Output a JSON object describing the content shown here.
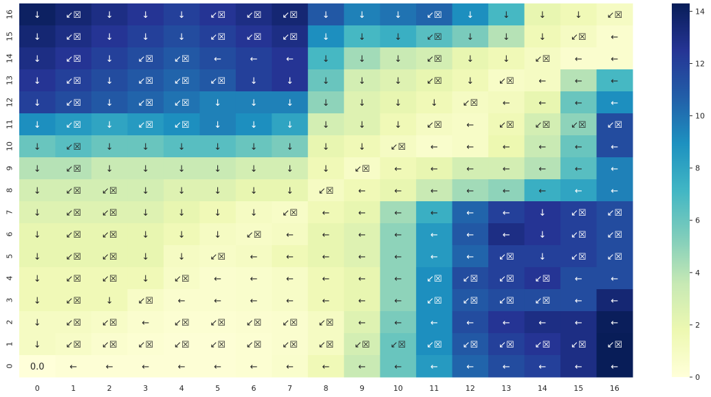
{
  "chart_data": {
    "type": "heatmap",
    "title": "",
    "xlabel": "",
    "ylabel": "",
    "x_ticks": [
      "0",
      "1",
      "2",
      "3",
      "4",
      "5",
      "6",
      "7",
      "8",
      "9",
      "10",
      "11",
      "12",
      "13",
      "14",
      "15",
      "16"
    ],
    "y_ticks": [
      "16",
      "15",
      "14",
      "13",
      "12",
      "11",
      "10",
      "9",
      "8",
      "7",
      "6",
      "5",
      "4",
      "3",
      "2",
      "1",
      "0"
    ],
    "colorbar": {
      "range": [
        0,
        14.3
      ],
      "ticks": [
        "0",
        "2",
        "4",
        "6",
        "8",
        "10",
        "12",
        "14"
      ],
      "tick_values": [
        0,
        2,
        4,
        6,
        8,
        10,
        12,
        14
      ],
      "colormap": "YlGnBu"
    },
    "annotations": [
      [
        "↓",
        "↙☒",
        "↓",
        "↓",
        "↓",
        "↙☒",
        "↙☒",
        "↙☒",
        "↓",
        "↓",
        "↓",
        "↙☒",
        "↓",
        "↓",
        "↓",
        "↓",
        "↙☒"
      ],
      [
        "↓",
        "↙☒",
        "↓",
        "↓",
        "↓",
        "↙☒",
        "↙☒",
        "↙☒",
        "↓",
        "↓",
        "↓",
        "↙☒",
        "↓",
        "↓",
        "↓",
        "↙☒",
        "←"
      ],
      [
        "↓",
        "↙☒",
        "↓",
        "↙☒",
        "↙☒",
        "←",
        "←",
        "←",
        "↓",
        "↓",
        "↓",
        "↙☒",
        "↓",
        "↓",
        "↙☒",
        "←",
        "←"
      ],
      [
        "↓",
        "↙☒",
        "↓",
        "↙☒",
        "↙☒",
        "↙☒",
        "↓",
        "↓",
        "↓",
        "↓",
        "↓",
        "↙☒",
        "↓",
        "↙☒",
        "←",
        "←",
        "←"
      ],
      [
        "↓",
        "↙☒",
        "↓",
        "↙☒",
        "↙☒",
        "↓",
        "↓",
        "↓",
        "↓",
        "↓",
        "↓",
        "↓",
        "↙☒",
        "←",
        "←",
        "←",
        "←"
      ],
      [
        "↓",
        "↙☒",
        "↓",
        "↙☒",
        "↙☒",
        "↓",
        "↓",
        "↓",
        "↓",
        "↓",
        "↓",
        "↙☒",
        "←",
        "↙☒",
        "↙☒",
        "↙☒",
        "↙☒"
      ],
      [
        "↓",
        "↙☒",
        "↓",
        "↓",
        "↓",
        "↓",
        "↓",
        "↓",
        "↓",
        "↓",
        "↙☒",
        "←",
        "←",
        "←",
        "←",
        "←",
        "←"
      ],
      [
        "↓",
        "↙☒",
        "↓",
        "↓",
        "↓",
        "↓",
        "↓",
        "↓",
        "↓",
        "↙☒",
        "←",
        "←",
        "←",
        "←",
        "←",
        "←",
        "←"
      ],
      [
        "↓",
        "↙☒",
        "↙☒",
        "↓",
        "↓",
        "↓",
        "↓",
        "↓",
        "↙☒",
        "←",
        "←",
        "←",
        "←",
        "←",
        "←",
        "←",
        "←"
      ],
      [
        "↓",
        "↙☒",
        "↙☒",
        "↓",
        "↓",
        "↓",
        "↓",
        "↙☒",
        "←",
        "←",
        "←",
        "←",
        "←",
        "←",
        "↓",
        "↙☒",
        "↙☒"
      ],
      [
        "↓",
        "↙☒",
        "↙☒",
        "↓",
        "↓",
        "↓",
        "↙☒",
        "←",
        "←",
        "←",
        "←",
        "←",
        "←",
        "←",
        "↓",
        "↙☒",
        "↙☒"
      ],
      [
        "↓",
        "↙☒",
        "↙☒",
        "↓",
        "↓",
        "↙☒",
        "←",
        "←",
        "←",
        "←",
        "←",
        "←",
        "←",
        "↙☒",
        "↓",
        "↙☒",
        "↙☒"
      ],
      [
        "↓",
        "↙☒",
        "↙☒",
        "↓",
        "↙☒",
        "←",
        "←",
        "←",
        "←",
        "←",
        "←",
        "↙☒",
        "↙☒",
        "↙☒",
        "↙☒",
        "←",
        "←"
      ],
      [
        "↓",
        "↙☒",
        "↓",
        "↙☒",
        "←",
        "←",
        "←",
        "←",
        "←",
        "←",
        "←",
        "↙☒",
        "↙☒",
        "↙☒",
        "↙☒",
        "←",
        "←"
      ],
      [
        "↓",
        "↙☒",
        "↙☒",
        "←",
        "↙☒",
        "↙☒",
        "↙☒",
        "↙☒",
        "↙☒",
        "←",
        "←",
        "←",
        "←",
        "←",
        "←",
        "←",
        "←"
      ],
      [
        "↓",
        "↙☒",
        "↙☒",
        "↙☒",
        "↙☒",
        "↙☒",
        "↙☒",
        "↙☒",
        "↙☒",
        "↙☒",
        "↙☒",
        "↙☒",
        "↙☒",
        "↙☒",
        "↙☒",
        "↙☒",
        "↙☒"
      ],
      [
        "0.0",
        "←",
        "←",
        "←",
        "←",
        "←",
        "←",
        "←",
        "←",
        "←",
        "←",
        "←",
        "←",
        "←",
        "←",
        "←",
        "←"
      ]
    ],
    "values": [
      [
        14.0,
        13.5,
        13.0,
        12.5,
        12.0,
        12.5,
        13.0,
        13.5,
        11.0,
        9.5,
        10.0,
        10.5,
        9.0,
        7.0,
        2.0,
        1.5,
        1.0
      ],
      [
        13.5,
        13.0,
        12.5,
        12.0,
        11.5,
        12.0,
        12.5,
        13.0,
        9.0,
        7.0,
        7.5,
        6.5,
        5.5,
        4.0,
        1.5,
        1.0,
        0.5
      ],
      [
        13.0,
        12.5,
        12.0,
        11.5,
        11.0,
        11.5,
        12.0,
        12.5,
        7.0,
        4.5,
        3.5,
        3.0,
        2.0,
        1.5,
        1.0,
        0.5,
        0.5
      ],
      [
        12.5,
        12.0,
        11.5,
        11.0,
        10.5,
        11.0,
        12.0,
        12.5,
        6.0,
        3.0,
        2.5,
        2.0,
        1.5,
        0.8,
        1.0,
        4.0,
        7.0
      ],
      [
        12.0,
        11.5,
        11.0,
        10.5,
        10.0,
        9.5,
        9.5,
        9.5,
        5.0,
        2.5,
        2.0,
        1.5,
        1.0,
        1.2,
        2.0,
        6.0,
        9.0
      ],
      [
        9.0,
        8.5,
        8.0,
        8.5,
        9.0,
        9.5,
        9.0,
        8.0,
        3.0,
        2.5,
        1.5,
        1.0,
        0.8,
        1.5,
        3.0,
        5.0,
        11.5
      ],
      [
        6.0,
        6.5,
        6.0,
        6.0,
        6.5,
        6.5,
        6.0,
        5.5,
        2.0,
        1.5,
        1.0,
        0.6,
        0.8,
        1.8,
        3.5,
        6.0,
        11.5
      ],
      [
        4.0,
        4.0,
        3.5,
        3.5,
        3.5,
        3.5,
        3.0,
        3.0,
        1.5,
        0.8,
        1.5,
        2.0,
        3.0,
        3.0,
        4.0,
        6.5,
        9.5
      ],
      [
        3.0,
        3.0,
        3.0,
        3.0,
        2.5,
        2.5,
        2.0,
        2.0,
        1.0,
        1.5,
        2.0,
        3.5,
        4.5,
        5.0,
        7.5,
        8.0,
        9.5
      ],
      [
        2.5,
        2.5,
        2.5,
        2.5,
        2.0,
        1.5,
        1.0,
        0.8,
        1.5,
        2.0,
        4.5,
        7.5,
        10.5,
        12.0,
        12.5,
        12.0,
        11.5
      ],
      [
        2.0,
        2.0,
        2.0,
        2.0,
        1.5,
        1.0,
        0.8,
        1.0,
        2.0,
        2.5,
        5.0,
        8.5,
        11.0,
        13.0,
        12.5,
        12.0,
        11.5
      ],
      [
        2.0,
        2.0,
        2.0,
        2.0,
        1.0,
        0.8,
        1.0,
        1.5,
        2.0,
        2.5,
        5.0,
        8.5,
        10.5,
        12.0,
        12.0,
        12.0,
        11.5
      ],
      [
        1.5,
        1.5,
        1.5,
        1.5,
        0.8,
        0.5,
        0.6,
        0.8,
        1.5,
        2.0,
        5.0,
        9.0,
        11.5,
        12.0,
        12.5,
        11.5,
        11.5
      ],
      [
        1.5,
        1.5,
        1.5,
        0.8,
        0.5,
        0.5,
        0.6,
        0.8,
        1.5,
        2.0,
        5.0,
        9.0,
        11.0,
        11.5,
        11.5,
        11.5,
        13.5
      ],
      [
        1.0,
        1.0,
        0.8,
        0.5,
        0.3,
        0.3,
        0.4,
        0.5,
        1.0,
        2.5,
        5.5,
        9.0,
        11.5,
        12.5,
        13.0,
        13.0,
        14.2
      ],
      [
        1.0,
        0.8,
        0.5,
        0.3,
        0.2,
        0.2,
        0.3,
        0.5,
        1.0,
        3.0,
        6.0,
        9.0,
        11.0,
        12.0,
        12.5,
        13.0,
        14.3
      ],
      [
        0.0,
        0.2,
        0.2,
        0.2,
        0.2,
        0.2,
        0.3,
        0.6,
        1.5,
        3.5,
        6.0,
        8.5,
        10.5,
        11.5,
        12.0,
        13.0,
        14.3
      ]
    ]
  }
}
